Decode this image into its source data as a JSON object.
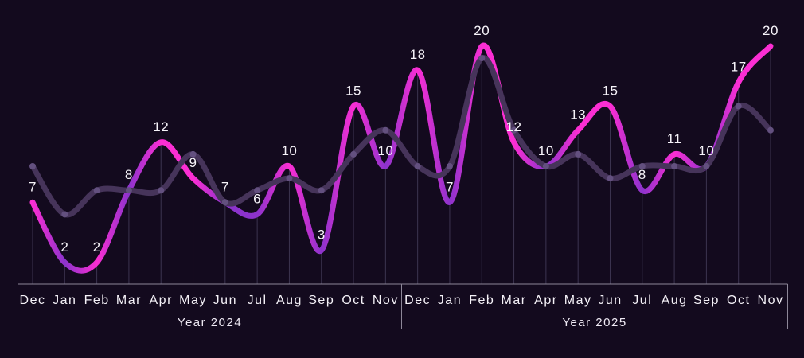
{
  "chart_data": {
    "type": "line",
    "x_axis": {
      "groups": [
        {
          "label": "Year 2024",
          "months": [
            "Dec",
            "Jan",
            "Feb",
            "Mar",
            "Apr",
            "May",
            "Jun",
            "Jul",
            "Aug",
            "Sep",
            "Oct",
            "Nov"
          ]
        },
        {
          "label": "Year 2025",
          "months": [
            "Dec",
            "Jan",
            "Feb",
            "Mar",
            "Apr",
            "May",
            "Jun",
            "Jul",
            "Aug",
            "Sep",
            "Oct",
            "Nov"
          ]
        }
      ]
    },
    "ylim": [
      0,
      20
    ],
    "grid": "vertical-drop-lines-per-point",
    "legend": "none",
    "series": [
      {
        "name": "primary",
        "smooth": true,
        "labels_visible": true,
        "values": [
          7,
          2,
          2,
          8,
          12,
          9,
          7,
          6,
          10,
          3,
          15,
          10,
          18,
          7,
          20,
          12,
          10,
          13,
          15,
          8,
          11,
          10,
          17,
          20
        ],
        "point_colors": [
          "#fb2ed3",
          "#8c33cc",
          "#fb2ed3",
          "#8c33cc",
          "#fb2ed3",
          "#fb2ed3",
          "#8c33cc",
          "#8c33cc",
          "#fb2ed3",
          "#8c33cc",
          "#fb2ed3",
          "#8c33cc",
          "#fb2ed3",
          "#8c33cc",
          "#fb2ed3",
          "#fb2ed3",
          "#8c33cc",
          "#fb2ed3",
          "#fb2ed3",
          "#8c33cc",
          "#fb2ed3",
          "#8c33cc",
          "#fb2ed3",
          "#fb2ed3"
        ]
      },
      {
        "name": "secondary-ghost",
        "smooth": true,
        "labels_visible": false,
        "values": [
          10,
          6,
          8,
          8,
          8,
          11,
          7,
          8,
          9,
          8,
          11,
          13,
          10,
          10,
          19,
          13,
          10,
          11,
          9,
          10,
          10,
          10,
          15,
          13
        ],
        "color": "#46345a",
        "dot_color": "#63507f"
      }
    ]
  },
  "style": {
    "background": "#130a1e",
    "magenta": "#fb2ed3",
    "violet": "#8c33cc",
    "ghost_line": "#46345a",
    "ghost_dot": "#63507f",
    "drop_line": "#3c3450",
    "axis_line": "#8d8798",
    "label_text": "#f7f4fa"
  }
}
